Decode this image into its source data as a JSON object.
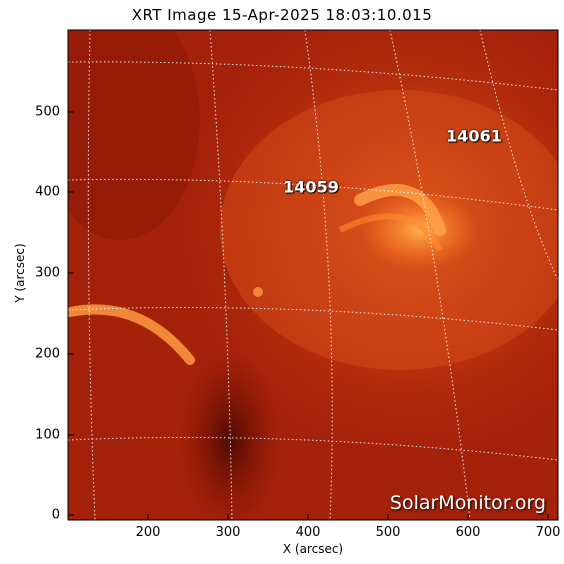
{
  "title": "XRT Image 15-Apr-2025 18:03:10.015",
  "xlabel": "X (arcsec)",
  "ylabel": "Y (arcsec)",
  "xticks": [
    "200",
    "300",
    "400",
    "500",
    "600",
    "700"
  ],
  "yticks": [
    "0",
    "100",
    "200",
    "300",
    "400",
    "500"
  ],
  "regions": [
    {
      "label": "14061",
      "x": 610,
      "y": 465
    },
    {
      "label": "14059",
      "x": 405,
      "y": 405
    }
  ],
  "watermark": "SolarMonitor.org",
  "colors": {
    "bg": "#9c1b05",
    "bright": "#ff9530",
    "grid": "#ffffff"
  }
}
